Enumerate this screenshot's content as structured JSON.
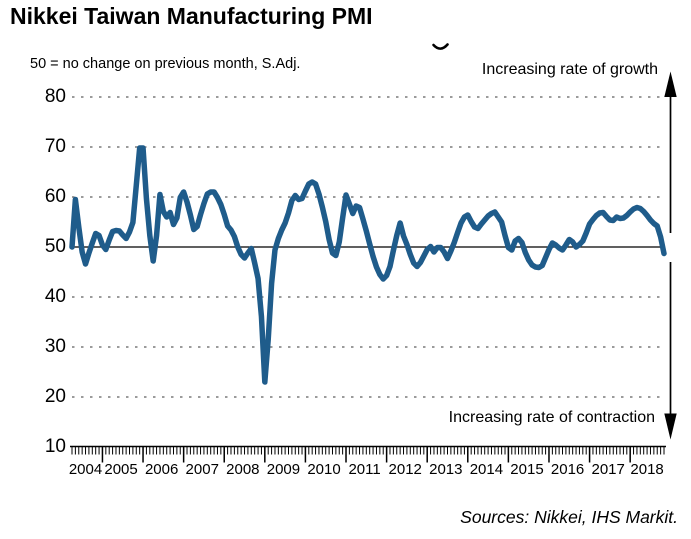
{
  "title": "Nikkei Taiwan Manufacturing PMI",
  "subtitle": "50 = no change on previous month, S.Adj.",
  "annotations": {
    "top": "Increasing rate of growth",
    "bottom": "Increasing rate of contraction"
  },
  "source": "Sources: Nikkei, IHS Markit.",
  "icons": {
    "growth_arrow": "arrow-up",
    "contraction_arrow": "arrow-down"
  },
  "colors": {
    "line": "#1f5c8b",
    "grid": "#7a7a7a",
    "baseline": "#000000",
    "axis": "#000000",
    "text": "#000000",
    "background": "#ffffff"
  },
  "chart_data": {
    "type": "line",
    "title": "Nikkei Taiwan Manufacturing PMI",
    "series_name": "Taiwan Manufacturing PMI, seasonally adjusted",
    "frequency": "monthly",
    "start_month": "2004-04",
    "end_month": "2018-11",
    "baseline": 50,
    "baseline_note": "50 = no change on previous month",
    "ylim": [
      10,
      80
    ],
    "y_ticks": [
      80,
      70,
      60,
      50,
      40,
      30,
      20,
      10
    ],
    "x_years": [
      2004,
      2005,
      2006,
      2007,
      2008,
      2009,
      2010,
      2011,
      2012,
      2013,
      2014,
      2015,
      2016,
      2017,
      2018
    ],
    "grid": "dashed horizontal at each 10, solid line at 50",
    "legend": "none",
    "values": [
      50.0,
      59.5,
      54.0,
      49.0,
      46.6,
      48.8,
      50.8,
      52.7,
      52.3,
      50.4,
      49.5,
      51.4,
      53.1,
      53.3,
      53.2,
      52.4,
      51.7,
      53.0,
      54.9,
      62.3,
      69.8,
      69.8,
      59.7,
      52.3,
      47.2,
      52.3,
      60.5,
      57.1,
      56.0,
      56.9,
      54.5,
      55.8,
      59.9,
      61.0,
      59.0,
      56.4,
      53.5,
      54.1,
      56.5,
      58.7,
      60.6,
      61.0,
      61.0,
      59.9,
      58.5,
      56.5,
      54.2,
      53.4,
      52.1,
      50.0,
      48.5,
      47.8,
      48.8,
      49.7,
      46.8,
      43.7,
      36.1,
      23.0,
      31.5,
      42.7,
      49.4,
      51.7,
      53.4,
      54.8,
      56.8,
      59.3,
      60.3,
      59.5,
      59.7,
      61.2,
      62.6,
      63.0,
      62.6,
      60.6,
      58.0,
      55.1,
      51.5,
      48.8,
      48.3,
      51.0,
      55.8,
      60.4,
      58.6,
      56.7,
      58.2,
      57.9,
      55.6,
      53.2,
      50.6,
      48.1,
      46.0,
      44.5,
      43.6,
      44.3,
      46.1,
      49.3,
      52.3,
      54.8,
      52.2,
      50.5,
      48.5,
      46.8,
      46.1,
      46.9,
      48.2,
      49.5,
      50.1,
      49.0,
      49.9,
      49.9,
      49.0,
      47.7,
      49.2,
      50.9,
      52.9,
      54.8,
      56.0,
      56.4,
      55.1,
      54.0,
      53.7,
      54.6,
      55.4,
      56.2,
      56.7,
      57.0,
      56.0,
      55.0,
      52.3,
      49.9,
      49.4,
      51.2,
      51.7,
      50.9,
      48.9,
      47.4,
      46.4,
      46.0,
      45.9,
      46.3,
      47.9,
      49.5,
      50.8,
      50.4,
      49.8,
      49.4,
      50.4,
      51.5,
      51.0,
      50.0,
      50.5,
      51.2,
      52.8,
      54.6,
      55.5,
      56.3,
      56.8,
      56.9,
      56.1,
      55.4,
      55.3,
      56.0,
      55.7,
      55.8,
      56.3,
      57.0,
      57.6,
      57.9,
      57.7,
      57.1,
      56.3,
      55.4,
      54.7,
      54.2,
      52.0,
      48.7
    ]
  }
}
